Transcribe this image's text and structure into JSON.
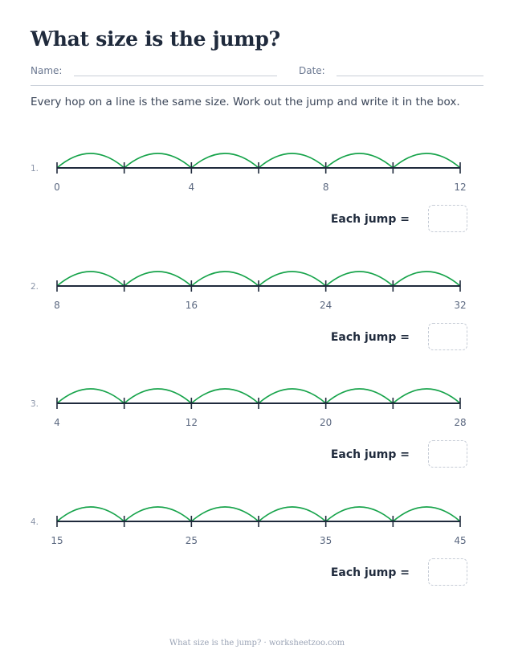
{
  "title": "What size is the jump?",
  "fields": {
    "name_label": "Name:",
    "date_label": "Date:"
  },
  "instructions": "Every hop on a line is the same size. Work out the jump and write it in the box.",
  "answer_label": "Each jump =",
  "colors": {
    "arc": "#16a34a",
    "line": "#1f2a3c"
  },
  "problems": [
    {
      "number": "1.",
      "start": 0,
      "jump": 2,
      "hops": 6,
      "labels": [
        "0",
        "4",
        "8",
        "12"
      ]
    },
    {
      "number": "2.",
      "start": 8,
      "jump": 4,
      "hops": 6,
      "labels": [
        "8",
        "16",
        "24",
        "32"
      ]
    },
    {
      "number": "3.",
      "start": 4,
      "jump": 4,
      "hops": 6,
      "labels": [
        "4",
        "12",
        "20",
        "28"
      ]
    },
    {
      "number": "4.",
      "start": 15,
      "jump": 5,
      "hops": 6,
      "labels": [
        "15",
        "25",
        "35",
        "45"
      ]
    }
  ],
  "footer": "What size is the jump? · worksheetzoo.com"
}
